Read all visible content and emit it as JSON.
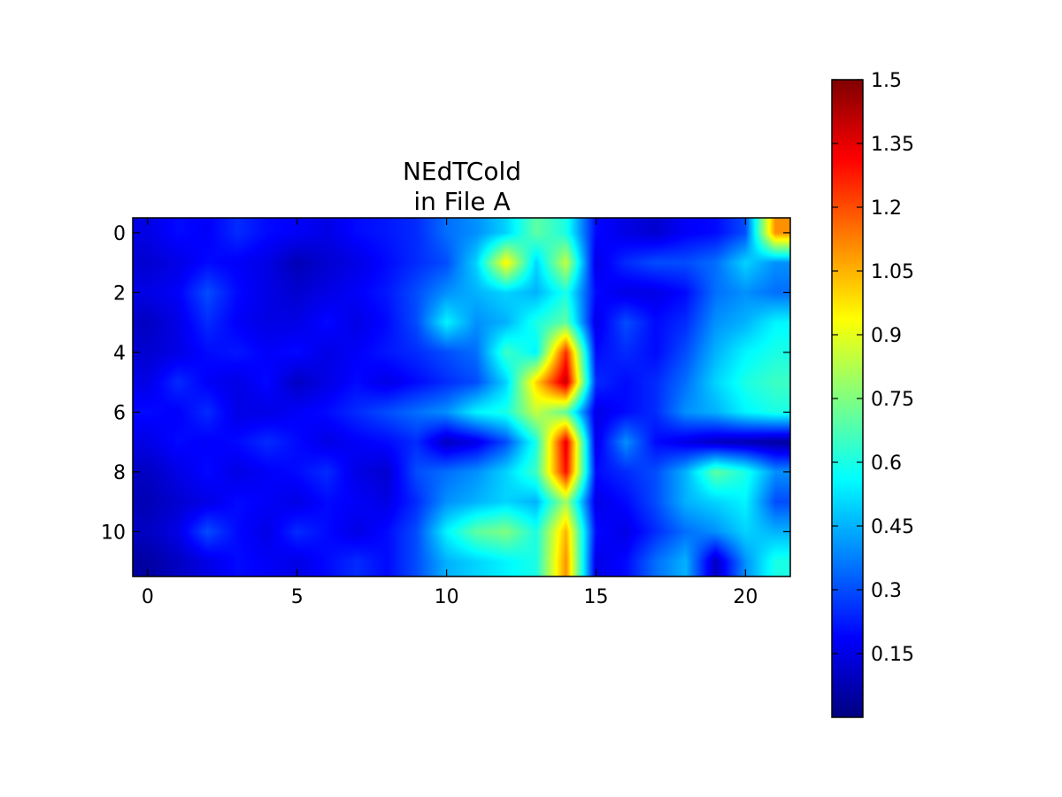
{
  "chart_data": {
    "type": "heatmap",
    "title_lines": [
      "NEdTCold",
      "in File A"
    ],
    "xlabel": "",
    "ylabel": "",
    "colormap": "jet",
    "interpolation": "smooth",
    "xlim": [
      -0.5,
      21.5
    ],
    "ylim": [
      11.5,
      -0.5
    ],
    "x_ticks": [
      0,
      5,
      10,
      15,
      20
    ],
    "y_ticks": [
      0,
      2,
      4,
      6,
      8,
      10
    ],
    "colorbar": {
      "vmin": 0.0,
      "vmax": 1.5,
      "ticks": [
        0.15,
        0.3,
        0.45,
        0.6,
        0.75,
        0.9,
        1.05,
        1.2,
        1.35,
        1.5
      ],
      "tick_labels": [
        "0.15",
        "0.3",
        "0.45",
        "0.6",
        "0.75",
        "0.9",
        "1.05",
        "1.2",
        "1.35",
        "1.5"
      ]
    },
    "rows": 12,
    "cols": 22,
    "values": [
      [
        0.15,
        0.2,
        0.18,
        0.25,
        0.2,
        0.18,
        0.15,
        0.2,
        0.22,
        0.25,
        0.35,
        0.4,
        0.5,
        0.7,
        0.6,
        0.2,
        0.15,
        0.12,
        0.18,
        0.2,
        0.3,
        1.1
      ],
      [
        0.12,
        0.15,
        0.2,
        0.18,
        0.15,
        0.08,
        0.12,
        0.15,
        0.2,
        0.25,
        0.3,
        0.5,
        0.95,
        0.5,
        0.85,
        0.15,
        0.25,
        0.3,
        0.3,
        0.35,
        0.5,
        0.4
      ],
      [
        0.15,
        0.18,
        0.3,
        0.2,
        0.15,
        0.12,
        0.15,
        0.18,
        0.22,
        0.3,
        0.4,
        0.45,
        0.5,
        0.45,
        0.6,
        0.2,
        0.15,
        0.15,
        0.2,
        0.35,
        0.4,
        0.35
      ],
      [
        0.1,
        0.15,
        0.25,
        0.18,
        0.15,
        0.15,
        0.2,
        0.15,
        0.2,
        0.3,
        0.55,
        0.4,
        0.45,
        0.6,
        0.7,
        0.15,
        0.3,
        0.2,
        0.25,
        0.4,
        0.45,
        0.55
      ],
      [
        0.12,
        0.15,
        0.2,
        0.22,
        0.18,
        0.2,
        0.15,
        0.18,
        0.22,
        0.25,
        0.3,
        0.35,
        0.65,
        0.55,
        1.25,
        0.2,
        0.25,
        0.2,
        0.3,
        0.45,
        0.55,
        0.6
      ],
      [
        0.15,
        0.25,
        0.18,
        0.15,
        0.2,
        0.1,
        0.15,
        0.2,
        0.15,
        0.2,
        0.25,
        0.3,
        0.5,
        1.0,
        1.4,
        0.25,
        0.2,
        0.25,
        0.35,
        0.5,
        0.6,
        0.65
      ],
      [
        0.2,
        0.18,
        0.25,
        0.15,
        0.15,
        0.18,
        0.2,
        0.25,
        0.3,
        0.35,
        0.4,
        0.55,
        0.6,
        0.85,
        0.7,
        0.15,
        0.2,
        0.25,
        0.4,
        0.45,
        0.55,
        0.6
      ],
      [
        0.15,
        0.2,
        0.18,
        0.2,
        0.25,
        0.2,
        0.15,
        0.18,
        0.2,
        0.25,
        0.1,
        0.15,
        0.3,
        0.6,
        1.35,
        0.15,
        0.4,
        0.2,
        0.15,
        0.1,
        0.08,
        0.05
      ],
      [
        0.1,
        0.15,
        0.2,
        0.15,
        0.18,
        0.2,
        0.25,
        0.15,
        0.12,
        0.3,
        0.35,
        0.4,
        0.5,
        0.65,
        1.3,
        0.2,
        0.25,
        0.3,
        0.45,
        0.7,
        0.6,
        0.4
      ],
      [
        0.08,
        0.12,
        0.15,
        0.2,
        0.18,
        0.15,
        0.2,
        0.18,
        0.15,
        0.25,
        0.4,
        0.45,
        0.5,
        0.45,
        0.8,
        0.15,
        0.2,
        0.3,
        0.45,
        0.5,
        0.55,
        0.3
      ],
      [
        0.1,
        0.15,
        0.3,
        0.2,
        0.15,
        0.25,
        0.2,
        0.15,
        0.2,
        0.3,
        0.55,
        0.7,
        0.75,
        0.6,
        1.05,
        0.2,
        0.15,
        0.25,
        0.35,
        0.4,
        0.5,
        0.45
      ],
      [
        0.05,
        0.1,
        0.15,
        0.2,
        0.18,
        0.15,
        0.2,
        0.25,
        0.2,
        0.3,
        0.45,
        0.5,
        0.55,
        0.6,
        1.1,
        0.15,
        0.2,
        0.35,
        0.45,
        0.1,
        0.4,
        0.6
      ]
    ]
  }
}
